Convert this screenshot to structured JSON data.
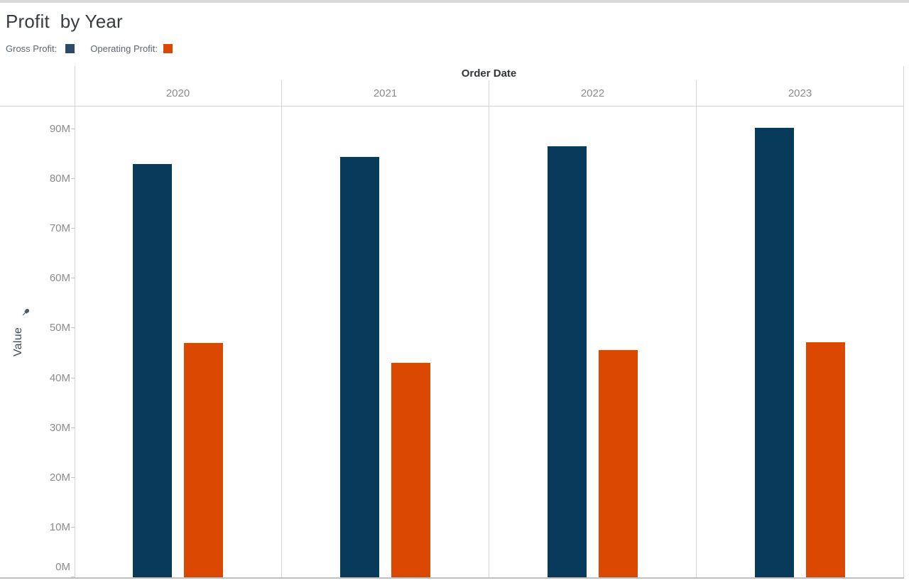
{
  "page": {
    "title": "Profit  by Year"
  },
  "legend": {
    "position": "top-left",
    "items": [
      {
        "label": "Gross Profit:",
        "color": "#2e4a68"
      },
      {
        "label": "Operating Profit:",
        "color": "#dc4803"
      }
    ]
  },
  "chart_data": {
    "type": "bar",
    "title": "Profit  by Year",
    "column_field_label": "Order Date",
    "categories": [
      "2020",
      "2021",
      "2022",
      "2023"
    ],
    "series": [
      {
        "name": "Gross Profit",
        "color": "#083a5c",
        "values": [
          83.0,
          84.4,
          86.6,
          90.3
        ]
      },
      {
        "name": "Operating Profit",
        "color": "#da4802",
        "values": [
          47.1,
          43.1,
          45.6,
          47.2
        ]
      }
    ],
    "value_unit": "M (millions)",
    "xlabel": "Order Date",
    "ylabel": "Value",
    "ylim": [
      0,
      94.6
    ],
    "yticks": [
      0,
      10,
      20,
      30,
      40,
      50,
      60,
      70,
      80,
      90
    ],
    "ytick_labels": [
      "0M",
      "10M",
      "20M",
      "30M",
      "40M",
      "50M",
      "60M",
      "70M",
      "80M",
      "90M"
    ],
    "grid": false,
    "axis_pinned": true,
    "legend_position": "top-left"
  }
}
